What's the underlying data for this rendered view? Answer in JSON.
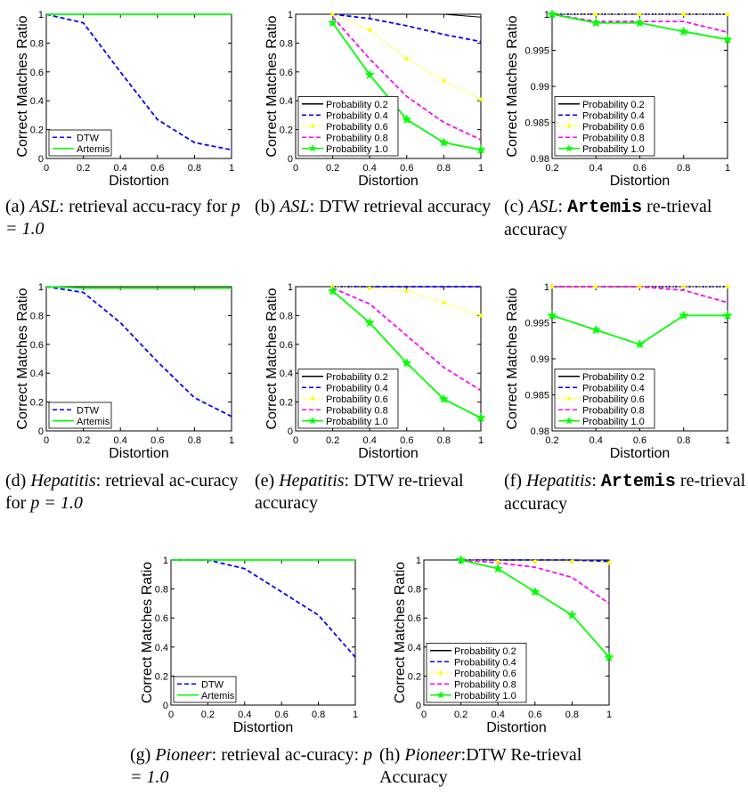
{
  "chart_data": [
    {
      "id": "a",
      "type": "line",
      "caption": {
        "label": "(a)",
        "dataset": "ASL",
        "text": ": retrieval accu-racy for ",
        "math": "p = 1.0"
      },
      "xlabel": "Distortion",
      "ylabel": "Correct Matches Ratio",
      "xlim": [
        0,
        1
      ],
      "ylim": [
        0,
        1
      ],
      "xticks": [
        "0",
        "0.2",
        "0.4",
        "0.6",
        "0.8",
        "1"
      ],
      "yticks": [
        "0",
        "0.2",
        "0.4",
        "0.6",
        "0.8",
        "1"
      ],
      "legend": "bottom-left",
      "series": [
        {
          "name": "DTW",
          "color": "#0000ff",
          "dash": "dash",
          "marker": "none",
          "x": [
            0,
            0.2,
            0.4,
            0.6,
            0.8,
            1.0
          ],
          "y": [
            1.0,
            0.94,
            0.6,
            0.27,
            0.11,
            0.06
          ]
        },
        {
          "name": "Artemis",
          "color": "#00ff00",
          "dash": "solid",
          "marker": "none",
          "x": [
            0,
            0.2,
            0.4,
            0.6,
            0.8,
            1.0
          ],
          "y": [
            1.0,
            1.0,
            1.0,
            1.0,
            1.0,
            1.0
          ]
        }
      ]
    },
    {
      "id": "b",
      "type": "line",
      "caption": {
        "label": "(b)",
        "dataset": "ASL",
        "text": ": DTW retrieval accuracy",
        "math": ""
      },
      "xlabel": "Distortion",
      "ylabel": "Correct Matches Ratio",
      "xlim": [
        0,
        1
      ],
      "ylim": [
        0,
        1
      ],
      "xticks": [
        "0",
        "0.2",
        "0.4",
        "0.6",
        "0.8",
        "1"
      ],
      "yticks": [
        "0",
        "0.2",
        "0.4",
        "0.6",
        "0.8",
        "1"
      ],
      "legend": "bottom-left",
      "series": [
        {
          "name": "Probability 0.2",
          "color": "#000000",
          "dash": "solid",
          "marker": "none",
          "x": [
            0.2,
            0.4,
            0.6,
            0.8,
            1.0
          ],
          "y": [
            1.0,
            1.0,
            1.0,
            1.0,
            0.98
          ]
        },
        {
          "name": "Probability 0.4",
          "color": "#0000ff",
          "dash": "dash",
          "marker": "none",
          "x": [
            0.2,
            0.4,
            0.6,
            0.8,
            1.0
          ],
          "y": [
            1.0,
            0.97,
            0.92,
            0.86,
            0.81
          ]
        },
        {
          "name": "Probability 0.6",
          "color": "#ffff00",
          "dash": "dot",
          "marker": "dot",
          "x": [
            0.2,
            0.4,
            0.6,
            0.8,
            1.0
          ],
          "y": [
            1.0,
            0.89,
            0.69,
            0.54,
            0.41
          ]
        },
        {
          "name": "Probability 0.8",
          "color": "#ff00ff",
          "dash": "dash",
          "marker": "none",
          "x": [
            0.2,
            0.4,
            0.6,
            0.8,
            1.0
          ],
          "y": [
            0.98,
            0.69,
            0.43,
            0.25,
            0.13
          ]
        },
        {
          "name": "Probability 1.0",
          "color": "#00ff00",
          "dash": "solid",
          "marker": "star",
          "x": [
            0.2,
            0.4,
            0.6,
            0.8,
            1.0
          ],
          "y": [
            0.94,
            0.58,
            0.27,
            0.11,
            0.06
          ]
        }
      ]
    },
    {
      "id": "c",
      "type": "line",
      "caption": {
        "label": "(c)",
        "dataset": "ASL",
        "text": ": ",
        "mono": "Artemis",
        "text2": " re-trieval accuracy",
        "math": ""
      },
      "xlabel": "Distortion",
      "ylabel": "Correct Matches Ratio",
      "xlim": [
        0.2,
        1
      ],
      "ylim": [
        0.98,
        1
      ],
      "xticks": [
        "0.2",
        "0.4",
        "0.6",
        "0.8",
        "1"
      ],
      "yticks": [
        "0.98",
        "0.985",
        "0.99",
        "0.995",
        "1"
      ],
      "legend": "bottom-left",
      "series": [
        {
          "name": "Probability 0.2",
          "color": "#000000",
          "dash": "solid",
          "marker": "none",
          "x": [
            0.2,
            0.4,
            0.6,
            0.8,
            1.0
          ],
          "y": [
            1.0,
            1.0,
            1.0,
            1.0,
            1.0
          ]
        },
        {
          "name": "Probability 0.4",
          "color": "#0000ff",
          "dash": "dash",
          "marker": "none",
          "x": [
            0.2,
            0.4,
            0.6,
            0.8,
            1.0
          ],
          "y": [
            1.0,
            1.0,
            1.0,
            1.0,
            1.0
          ]
        },
        {
          "name": "Probability 0.6",
          "color": "#ffff00",
          "dash": "dot",
          "marker": "dot",
          "x": [
            0.2,
            0.4,
            0.6,
            0.8,
            1.0
          ],
          "y": [
            1.0,
            1.0,
            1.0,
            1.0,
            1.0
          ]
        },
        {
          "name": "Probability 0.8",
          "color": "#ff00ff",
          "dash": "dash",
          "marker": "none",
          "x": [
            0.2,
            0.4,
            0.6,
            0.8,
            1.0
          ],
          "y": [
            1.0,
            0.999,
            0.999,
            0.999,
            0.9975
          ]
        },
        {
          "name": "Probability 1.0",
          "color": "#00ff00",
          "dash": "solid",
          "marker": "star",
          "x": [
            0.2,
            0.4,
            0.6,
            0.8,
            1.0
          ],
          "y": [
            1.0,
            0.9988,
            0.9988,
            0.9976,
            0.9965
          ]
        }
      ]
    },
    {
      "id": "d",
      "type": "line",
      "caption": {
        "label": "(d)",
        "dataset": "Hepatitis",
        "text": ": retrieval ac-curacy for ",
        "math": "p = 1.0"
      },
      "xlabel": "Distortion",
      "ylabel": "Correct Matches Ratio",
      "xlim": [
        0,
        1
      ],
      "ylim": [
        0,
        1
      ],
      "xticks": [
        "0",
        "0.2",
        "0.4",
        "0.6",
        "0.8",
        "1"
      ],
      "yticks": [
        "0",
        "0.2",
        "0.4",
        "0.6",
        "0.8",
        "1"
      ],
      "legend": "bottom-left",
      "series": [
        {
          "name": "DTW",
          "color": "#0000ff",
          "dash": "dash",
          "marker": "none",
          "x": [
            0,
            0.2,
            0.4,
            0.6,
            0.8,
            1.0
          ],
          "y": [
            1.0,
            0.96,
            0.75,
            0.48,
            0.23,
            0.1
          ]
        },
        {
          "name": "Artemis",
          "color": "#00ff00",
          "dash": "solid",
          "marker": "none",
          "x": [
            0,
            0.2,
            0.4,
            0.6,
            0.8,
            1.0
          ],
          "y": [
            1.0,
            0.99,
            0.99,
            0.99,
            0.99,
            0.99
          ]
        }
      ]
    },
    {
      "id": "e",
      "type": "line",
      "caption": {
        "label": "(e)",
        "dataset": "Hepatitis",
        "text": ": DTW re-trieval accuracy",
        "math": ""
      },
      "xlabel": "Distortion",
      "ylabel": "Correct Matches Ratio",
      "xlim": [
        0,
        1
      ],
      "ylim": [
        0,
        1
      ],
      "xticks": [
        "0",
        "0.2",
        "0.4",
        "0.6",
        "0.8",
        "1"
      ],
      "yticks": [
        "0",
        "0.2",
        "0.4",
        "0.6",
        "0.8",
        "1"
      ],
      "legend": "bottom-left",
      "series": [
        {
          "name": "Probability 0.2",
          "color": "#000000",
          "dash": "solid",
          "marker": "none",
          "x": [
            0.2,
            0.4,
            0.6,
            0.8,
            1.0
          ],
          "y": [
            1.0,
            1.0,
            1.0,
            1.0,
            1.0
          ]
        },
        {
          "name": "Probability 0.4",
          "color": "#0000ff",
          "dash": "dash",
          "marker": "none",
          "x": [
            0.2,
            0.4,
            0.6,
            0.8,
            1.0
          ],
          "y": [
            1.0,
            1.0,
            1.0,
            1.0,
            1.0
          ]
        },
        {
          "name": "Probability 0.6",
          "color": "#ffff00",
          "dash": "dot",
          "marker": "dot",
          "x": [
            0.2,
            0.4,
            0.6,
            0.8,
            1.0
          ],
          "y": [
            1.0,
            0.99,
            0.97,
            0.89,
            0.8
          ]
        },
        {
          "name": "Probability 0.8",
          "color": "#ff00ff",
          "dash": "dash",
          "marker": "none",
          "x": [
            0.2,
            0.4,
            0.6,
            0.8,
            1.0
          ],
          "y": [
            0.99,
            0.88,
            0.66,
            0.44,
            0.28
          ]
        },
        {
          "name": "Probability 1.0",
          "color": "#00ff00",
          "dash": "solid",
          "marker": "star",
          "x": [
            0.2,
            0.4,
            0.6,
            0.8,
            1.0
          ],
          "y": [
            0.97,
            0.75,
            0.47,
            0.22,
            0.09
          ]
        }
      ]
    },
    {
      "id": "f",
      "type": "line",
      "caption": {
        "label": "(f)",
        "dataset": "Hepatitis",
        "text": ": ",
        "mono": "Artemis",
        "text2": " re-trieval accuracy",
        "math": ""
      },
      "xlabel": "Distortion",
      "ylabel": "Correct Matches Ratio",
      "xlim": [
        0.2,
        1
      ],
      "ylim": [
        0.98,
        1
      ],
      "xticks": [
        "0.2",
        "0.4",
        "0.6",
        "0.8",
        "1"
      ],
      "yticks": [
        "0.98",
        "0.985",
        "0.99",
        "0.995",
        "1"
      ],
      "legend": "bottom-left",
      "series": [
        {
          "name": "Probability 0.2",
          "color": "#000000",
          "dash": "solid",
          "marker": "none",
          "x": [
            0.2,
            0.4,
            0.6,
            0.8,
            1.0
          ],
          "y": [
            1.0,
            1.0,
            1.0,
            1.0,
            1.0
          ]
        },
        {
          "name": "Probability 0.4",
          "color": "#0000ff",
          "dash": "dash",
          "marker": "none",
          "x": [
            0.2,
            0.4,
            0.6,
            0.8,
            1.0
          ],
          "y": [
            1.0,
            1.0,
            1.0,
            1.0,
            1.0
          ]
        },
        {
          "name": "Probability 0.6",
          "color": "#ffff00",
          "dash": "dot",
          "marker": "dot",
          "x": [
            0.2,
            0.4,
            0.6,
            0.8,
            1.0
          ],
          "y": [
            1.0,
            1.0,
            1.0,
            1.0,
            1.0
          ]
        },
        {
          "name": "Probability 0.8",
          "color": "#ff00ff",
          "dash": "dash",
          "marker": "none",
          "x": [
            0.2,
            0.4,
            0.6,
            0.8,
            1.0
          ],
          "y": [
            1.0,
            1.0,
            1.0,
            0.9995,
            0.9978
          ]
        },
        {
          "name": "Probability 1.0",
          "color": "#00ff00",
          "dash": "solid",
          "marker": "star",
          "x": [
            0.2,
            0.4,
            0.6,
            0.8,
            1.0
          ],
          "y": [
            0.996,
            0.994,
            0.992,
            0.996,
            0.996
          ]
        }
      ]
    },
    {
      "id": "g",
      "type": "line",
      "caption": {
        "label": "(g)",
        "dataset": "Pioneer",
        "text": ": retrieval ac-curacy: ",
        "math": "p = 1.0"
      },
      "xlabel": "Distortion",
      "ylabel": "Correct Matches Ratio",
      "xlim": [
        0,
        1
      ],
      "ylim": [
        0,
        1
      ],
      "xticks": [
        "0",
        "0.2",
        "0.4",
        "0.6",
        "0.8",
        "1"
      ],
      "yticks": [
        "0",
        "0.2",
        "0.4",
        "0.6",
        "0.8",
        "1"
      ],
      "legend": "bottom-left",
      "series": [
        {
          "name": "DTW",
          "color": "#0000ff",
          "dash": "dash",
          "marker": "none",
          "x": [
            0,
            0.2,
            0.4,
            0.6,
            0.8,
            1.0
          ],
          "y": [
            1.0,
            1.0,
            0.94,
            0.78,
            0.62,
            0.33
          ]
        },
        {
          "name": "Artemis",
          "color": "#00ff00",
          "dash": "solid",
          "marker": "none",
          "x": [
            0,
            0.2,
            0.4,
            0.6,
            0.8,
            1.0
          ],
          "y": [
            1.0,
            1.0,
            1.0,
            1.0,
            1.0,
            1.0
          ]
        }
      ]
    },
    {
      "id": "h",
      "type": "line",
      "caption": {
        "label": "(h)",
        "dataset": "Pioneer",
        "text": ":DTW Re-trieval Accuracy",
        "math": ""
      },
      "xlabel": "Distortion",
      "ylabel": "Correct Matches Ratio",
      "xlim": [
        0,
        1
      ],
      "ylim": [
        0,
        1
      ],
      "xticks": [
        "0",
        "0.2",
        "0.4",
        "0.6",
        "0.8",
        "1"
      ],
      "yticks": [
        "0",
        "0.2",
        "0.4",
        "0.6",
        "0.8",
        "1"
      ],
      "legend": "bottom-left",
      "series": [
        {
          "name": "Probability 0.2",
          "color": "#000000",
          "dash": "solid",
          "marker": "none",
          "x": [
            0.2,
            0.4,
            0.6,
            0.8,
            1.0
          ],
          "y": [
            1.0,
            1.0,
            1.0,
            1.0,
            1.0
          ]
        },
        {
          "name": "Probability 0.4",
          "color": "#0000ff",
          "dash": "dash",
          "marker": "none",
          "x": [
            0.2,
            0.4,
            0.6,
            0.8,
            1.0
          ],
          "y": [
            1.0,
            1.0,
            1.0,
            1.0,
            0.99
          ]
        },
        {
          "name": "Probability 0.6",
          "color": "#ffff00",
          "dash": "dot",
          "marker": "dot",
          "x": [
            0.2,
            0.4,
            0.6,
            0.8,
            1.0
          ],
          "y": [
            1.0,
            0.99,
            0.99,
            0.99,
            0.98
          ]
        },
        {
          "name": "Probability 0.8",
          "color": "#ff00ff",
          "dash": "dash",
          "marker": "none",
          "x": [
            0.2,
            0.4,
            0.6,
            0.8,
            1.0
          ],
          "y": [
            1.0,
            0.98,
            0.95,
            0.88,
            0.7
          ]
        },
        {
          "name": "Probability 1.0",
          "color": "#00ff00",
          "dash": "solid",
          "marker": "star",
          "x": [
            0.2,
            0.4,
            0.6,
            0.8,
            1.0
          ],
          "y": [
            1.0,
            0.94,
            0.78,
            0.62,
            0.33
          ]
        }
      ]
    }
  ]
}
